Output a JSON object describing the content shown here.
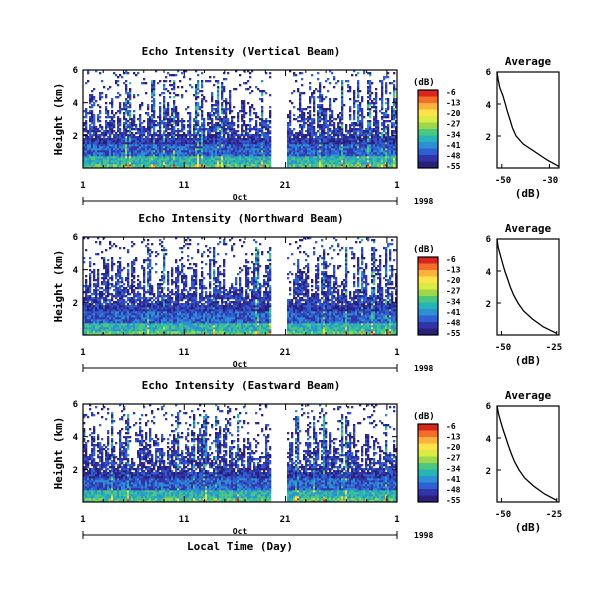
{
  "figure": {
    "xlabel": "Local Time (Day)",
    "colorbar_unit": "(dB)",
    "colorbar_ticks": [
      "-6",
      "-13",
      "-20",
      "-27",
      "-34",
      "-41",
      "-48",
      "-55"
    ],
    "colorbar_colors": [
      "#d7261e",
      "#f46d2b",
      "#fdb23c",
      "#fee34a",
      "#d8ec45",
      "#9ed84a",
      "#4cc780",
      "#27b3b7",
      "#2d8fd4",
      "#2f5fd0",
      "#3334a8",
      "#2a1f7a"
    ],
    "date_ticks": [
      "1",
      "11",
      "21",
      "1"
    ],
    "month_label": "Oct",
    "year_label": "1998",
    "height_ticks": [
      "6",
      "4",
      "2"
    ],
    "ylabel": "Height (km)",
    "profile_title": "Average",
    "profile_xlabel": "(dB)"
  },
  "chart_data": [
    {
      "type": "heatmap",
      "title": "Echo Intensity (Vertical Beam)",
      "x": "day of October 1998 (1 to 1 Nov)",
      "x_ticks": [
        "1",
        "11",
        "21",
        "1"
      ],
      "y_ticks": [
        6,
        4,
        2
      ],
      "ylabel": "Height (km)",
      "ylim": [
        0,
        6
      ],
      "colorbar": {
        "label": "(dB)",
        "ticks": [
          -6,
          -13,
          -20,
          -27,
          -34,
          -41,
          -48,
          -55
        ]
      },
      "data_gap_days": [
        19.5,
        21.2
      ],
      "profile": {
        "title": "Average",
        "xlabel": "(dB)",
        "x_ticks": [
          -50,
          -30
        ],
        "xlim": [
          -52,
          -26
        ],
        "y_ticks": [
          6,
          4,
          2
        ],
        "height_km": [
          6.0,
          5.5,
          5.0,
          4.5,
          4.0,
          3.5,
          3.0,
          2.5,
          2.0,
          1.5,
          1.0,
          0.5,
          0.1
        ],
        "value_db": [
          -52,
          -51.5,
          -50.8,
          -49.5,
          -48.5,
          -47.6,
          -46.5,
          -45.5,
          -44,
          -41,
          -36,
          -31,
          -26
        ]
      }
    },
    {
      "type": "heatmap",
      "title": "Echo Intensity (Northward Beam)",
      "x": "day of October 1998 (1 to 1 Nov)",
      "x_ticks": [
        "1",
        "11",
        "21",
        "1"
      ],
      "y_ticks": [
        6,
        4,
        2
      ],
      "ylabel": "Height (km)",
      "ylim": [
        0,
        6
      ],
      "colorbar": {
        "label": "(dB)",
        "ticks": [
          -6,
          -13,
          -20,
          -27,
          -34,
          -41,
          -48,
          -55
        ]
      },
      "data_gap_days": [
        19.5,
        21.2
      ],
      "profile": {
        "title": "Average",
        "xlabel": "(dB)",
        "x_ticks": [
          -50,
          -25
        ],
        "xlim": [
          -52,
          -24
        ],
        "y_ticks": [
          6,
          4,
          2
        ],
        "height_km": [
          6.0,
          5.5,
          5.0,
          4.5,
          4.0,
          3.5,
          3.0,
          2.5,
          2.0,
          1.5,
          1.0,
          0.5,
          0.1
        ],
        "value_db": [
          -52,
          -51.5,
          -50.5,
          -49.5,
          -48.5,
          -47.2,
          -46,
          -44.5,
          -42.5,
          -40,
          -36,
          -31,
          -25
        ]
      }
    },
    {
      "type": "heatmap",
      "title": "Echo Intensity (Eastward Beam)",
      "x": "day of October 1998 (1 to 1 Nov)",
      "x_ticks": [
        "1",
        "11",
        "21",
        "1"
      ],
      "y_ticks": [
        6,
        4,
        2
      ],
      "ylabel": "Height (km)",
      "ylim": [
        0,
        6
      ],
      "colorbar": {
        "label": "(dB)",
        "ticks": [
          -6,
          -13,
          -20,
          -27,
          -34,
          -41,
          -48,
          -55
        ]
      },
      "data_gap_days": [
        19.5,
        21.2
      ],
      "profile": {
        "title": "Average",
        "xlabel": "(dB)",
        "x_ticks": [
          -50,
          -25
        ],
        "xlim": [
          -52,
          -24
        ],
        "y_ticks": [
          6,
          4,
          2
        ],
        "height_km": [
          6.0,
          5.5,
          5.0,
          4.5,
          4.0,
          3.5,
          3.0,
          2.5,
          2.0,
          1.5,
          1.0,
          0.5,
          0.1
        ],
        "value_db": [
          -52,
          -51.3,
          -50.3,
          -49.2,
          -48,
          -46.8,
          -45.5,
          -44,
          -42,
          -39.5,
          -35.5,
          -30.5,
          -25
        ]
      }
    }
  ]
}
